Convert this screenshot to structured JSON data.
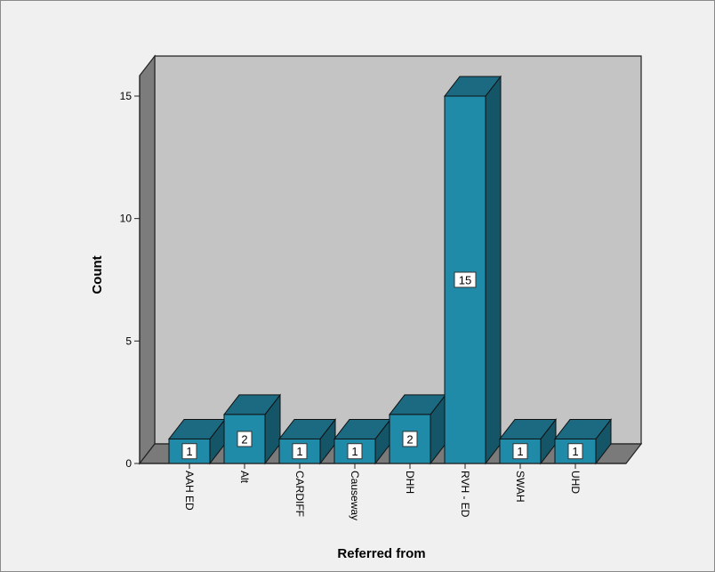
{
  "chart_data": {
    "type": "bar",
    "title": "",
    "xlabel": "Referred from",
    "ylabel": "Count",
    "categories": [
      "AAH ED",
      "Alt",
      "CARDIFF",
      "Causeway",
      "DHH",
      "RVH - ED",
      "SWAH",
      "UHD"
    ],
    "values": [
      1,
      2,
      1,
      1,
      2,
      15,
      1,
      1
    ],
    "yticks": [
      0,
      5,
      10,
      15
    ],
    "ylim": [
      0,
      15
    ],
    "grid": false,
    "legend": "none",
    "style": "3d",
    "data_labels": true
  },
  "colors": {
    "bar_front": "#1f8ba9",
    "bar_top": "#1b6a82",
    "bar_side": "#155568",
    "back_wall": "#c4c4c4",
    "side_wall": "#7c7c7c",
    "floor": "#7a7a7a",
    "frame_background": "#f0f0f0"
  }
}
